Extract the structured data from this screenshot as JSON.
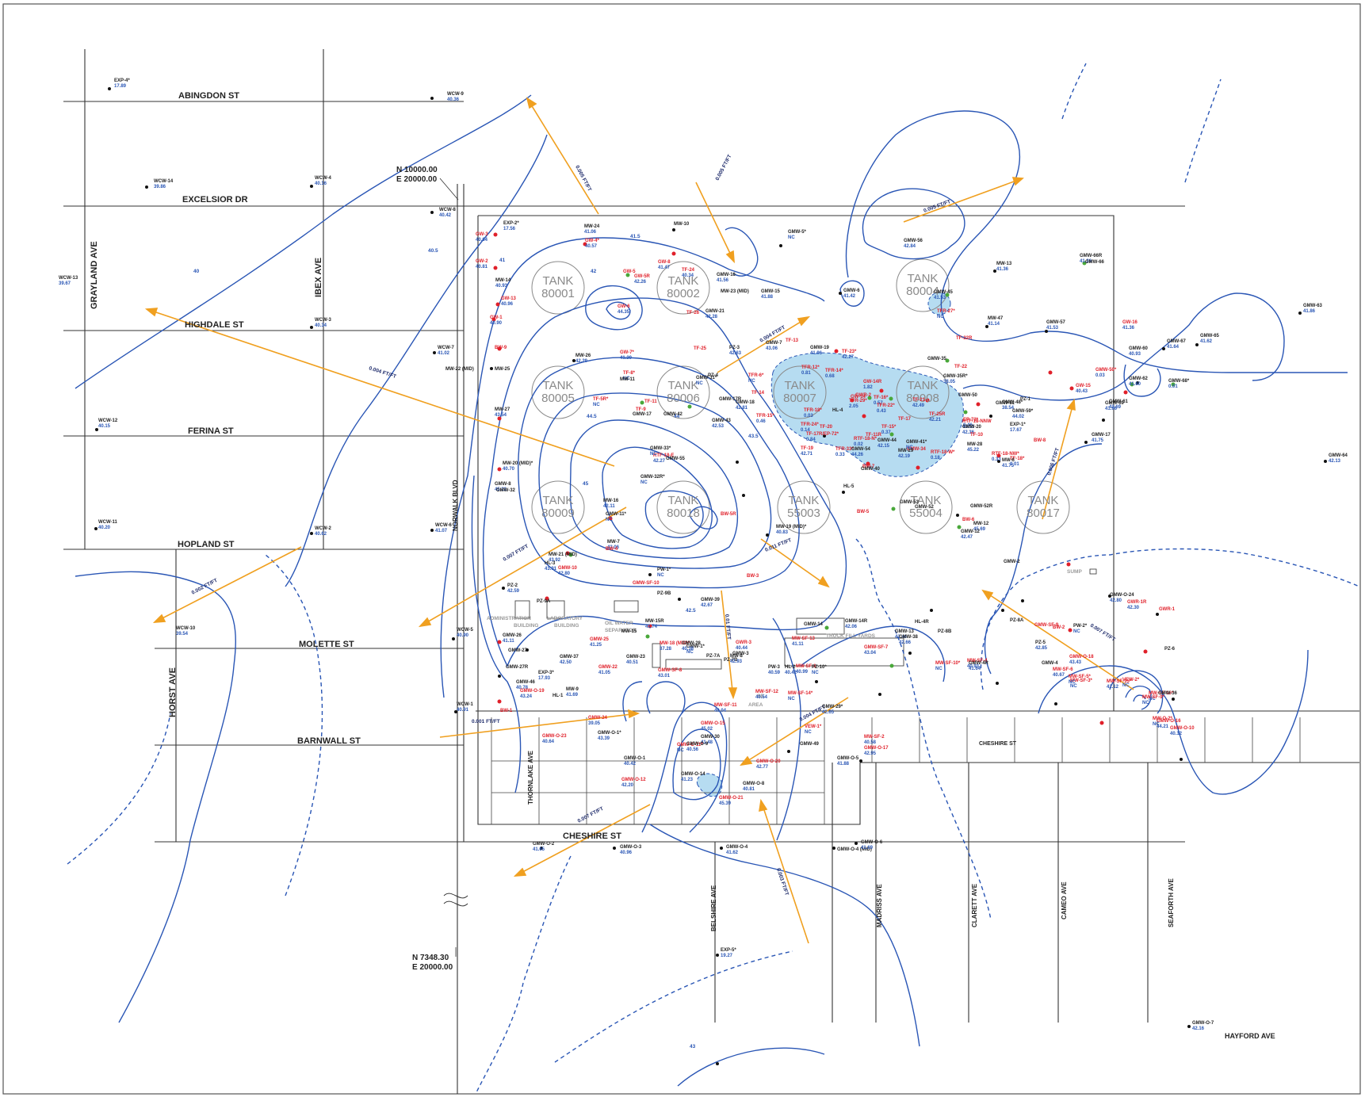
{
  "streets": {
    "abingdon": "ABINGDON ST",
    "excelsior": "EXCELSIOR DR",
    "highdale": "HIGHDALE ST",
    "ferina": "FERINA ST",
    "hopland": "HOPLAND ST",
    "molette": "MOLETTE ST",
    "barnwall": "BARNWALL ST",
    "cheshire_w": "CHESHIRE ST",
    "cheshire_e": "CHESHIRE ST",
    "hayford": "HAYFORD AVE",
    "grayland": "GRAYLAND AVE",
    "ibex": "IBEX AVE",
    "norwalk": "NORWALK BLVD",
    "horst": "HORST AVE",
    "thornlake": "THORNLAKE AVE",
    "belshire": "BELSHIRE AVE",
    "madriss": "MADRISS AVE",
    "clarett": "CLARETT AVE",
    "cameo": "CAMEO AVE",
    "seaforth": "SEAFORTH AVE"
  },
  "coordinates": {
    "top_n": "N 10000.00",
    "top_e": "E 20000.00",
    "bottom_n": "N 7348.30",
    "bottom_e": "E 20000.00"
  },
  "tanks": [
    {
      "label": "TANK",
      "num": "80001"
    },
    {
      "label": "TANK",
      "num": "80002"
    },
    {
      "label": "TANK",
      "num": "80004"
    },
    {
      "label": "TANK",
      "num": "80005"
    },
    {
      "label": "TANK",
      "num": "80006"
    },
    {
      "label": "TANK",
      "num": "80007"
    },
    {
      "label": "TANK",
      "num": "80008"
    },
    {
      "label": "TANK",
      "num": "80009"
    },
    {
      "label": "TANK",
      "num": "80018"
    },
    {
      "label": "TANK",
      "num": "55003"
    },
    {
      "label": "TANK",
      "num": "55004"
    },
    {
      "label": "TANK",
      "num": "80017"
    }
  ],
  "buildings": {
    "admin": "ADMINISTRATION",
    "admin2": "BUILDING",
    "lab": "LABORATORY",
    "lab2": "BUILDING",
    "oil": "OIL WATER",
    "oil2": "SEPARATOR",
    "truck": "TRUCK FILL YARDS",
    "se": "SE",
    "se2": "AREA",
    "sump": "SUMP"
  },
  "gradients": {
    "g1": "0.004 FT/FT",
    "g2": "0.005 FT/FT",
    "g3": "0.005 FT/FT",
    "g4": "0.004 FT/FT",
    "g5": "0.005 FT/FT",
    "g6": "0.007 FT/FT",
    "g7": "0.011 FT/FT",
    "g8": "0.002 FT/FT",
    "g9": "0.01 FT/FT",
    "g10": "0.001 FT/FT",
    "g11": "0.004 FT/FT",
    "g12": "0.007 FT/FT",
    "g13": "0.003 FT/FT",
    "g14": "0.006 FT/FT",
    "g15": "0.007 FT/FT"
  },
  "contour_labels": [
    "40",
    "40.5",
    "41",
    "41.5",
    "42",
    "42.5",
    "43",
    "43.5",
    "44",
    "44.5",
    "45"
  ],
  "wells": [
    {
      "id": "EXP-4*",
      "v": "17.89"
    },
    {
      "id": "WCW-9",
      "v": "40.36"
    },
    {
      "id": "WCW-14",
      "v": "39.86"
    },
    {
      "id": "WCW-4",
      "v": "40.16"
    },
    {
      "id": "WCW-13",
      "v": "39.67"
    },
    {
      "id": "WCW-8",
      "v": "40.42"
    },
    {
      "id": "WCW-3",
      "v": "40.34"
    },
    {
      "id": "WCW-7",
      "v": "41.02"
    },
    {
      "id": "WCW-12",
      "v": "40.15"
    },
    {
      "id": "WCW-11",
      "v": "40.20"
    },
    {
      "id": "WCW-2",
      "v": "40.62"
    },
    {
      "id": "WCW-6",
      "v": "41.07"
    },
    {
      "id": "WCW-10",
      "v": "39.54"
    },
    {
      "id": "WCW-5",
      "v": "40.90"
    },
    {
      "id": "WCW-1",
      "v": "40.91"
    },
    {
      "id": "EXP-2*",
      "v": "17.56"
    },
    {
      "id": "GW-3",
      "v": "40.64"
    },
    {
      "id": "GW-2",
      "v": "40.81"
    },
    {
      "id": "MW-14",
      "v": "40.93"
    },
    {
      "id": "GW-13",
      "v": "40.96"
    },
    {
      "id": "GW-1",
      "v": "40.90"
    },
    {
      "id": "MW-24",
      "v": "41.06"
    },
    {
      "id": "GW-4*",
      "v": "40.57"
    },
    {
      "id": "MW-10",
      "v": ""
    },
    {
      "id": "GW-8",
      "v": "41.47"
    },
    {
      "id": "GMW-16",
      "v": "41.56"
    },
    {
      "id": "TF-24",
      "v": "40.34"
    },
    {
      "id": "MW-23 (MID)",
      "v": ""
    },
    {
      "id": "GMW-5*",
      "v": "NC"
    },
    {
      "id": "GW-5",
      "v": ""
    },
    {
      "id": "GW-5R",
      "v": "42.26"
    },
    {
      "id": "GW-6",
      "v": "44.35"
    },
    {
      "id": "GMW-15",
      "v": "41.88"
    },
    {
      "id": "GMW-21",
      "v": "42.28"
    },
    {
      "id": "TF-26",
      "v": ""
    },
    {
      "id": "GMW-6",
      "v": "41.42"
    },
    {
      "id": "GMW-56",
      "v": "42.84"
    },
    {
      "id": "GMW-45",
      "v": "41.53"
    },
    {
      "id": "TFR-27*",
      "v": "NC"
    },
    {
      "id": "MW-13",
      "v": "41.36"
    },
    {
      "id": "GMW-66R",
      "v": "41.36"
    },
    {
      "id": "GMW-66",
      "v": ""
    },
    {
      "id": "MW-47",
      "v": "41.14"
    },
    {
      "id": "GMW-57",
      "v": "41.53"
    },
    {
      "id": "GW-16",
      "v": "41.36"
    },
    {
      "id": "GMW-63",
      "v": "41.86"
    },
    {
      "id": "GMW-65",
      "v": "41.62"
    },
    {
      "id": "GMW-67",
      "v": "41.64"
    },
    {
      "id": "GMW-60",
      "v": "40.93"
    },
    {
      "id": "GMW-68*",
      "v": "0.01"
    },
    {
      "id": "GMW-62",
      "v": "41.60"
    },
    {
      "id": "GMW-61",
      "v": "42.69"
    },
    {
      "id": "GMW-69",
      "v": "41.96"
    },
    {
      "id": "GMW-50*",
      "v": "0.03"
    },
    {
      "id": "GW-15",
      "v": "40.43"
    },
    {
      "id": "GMW-17",
      "v": "41.75"
    },
    {
      "id": "GMW-64",
      "v": "42.13"
    },
    {
      "id": "BW-9",
      "v": ""
    },
    {
      "id": "MW-22 (MID)",
      "v": ""
    },
    {
      "id": "MW-25",
      "v": ""
    },
    {
      "id": "MW-26",
      "v": "42.29"
    },
    {
      "id": "GW-7*",
      "v": "41.20"
    },
    {
      "id": "TF-25",
      "v": ""
    },
    {
      "id": "PZ-3",
      "v": "42.63"
    },
    {
      "id": "TF-13",
      "v": ""
    },
    {
      "id": "GMW-7",
      "v": "43.06"
    },
    {
      "id": "GMW-19",
      "v": "41.96"
    },
    {
      "id": "TF-23*",
      "v": "42.27"
    },
    {
      "id": "TF-22R",
      "v": ""
    },
    {
      "id": "GMW-35",
      "v": ""
    },
    {
      "id": "TF-22",
      "v": ""
    },
    {
      "id": "GMW-35R*",
      "v": "38.05"
    },
    {
      "id": "TF-8*",
      "v": "NC"
    },
    {
      "id": "MW-11",
      "v": ""
    },
    {
      "id": "GMW-31*",
      "v": "NC"
    },
    {
      "id": "PZ-4",
      "v": ""
    },
    {
      "id": "TFR-6*",
      "v": "NC"
    },
    {
      "id": "TF-14",
      "v": ""
    },
    {
      "id": "GMW-18",
      "v": "42.81"
    },
    {
      "id": "GMW-17R",
      "v": ""
    },
    {
      "id": "TFR-12*",
      "v": "0.81"
    },
    {
      "id": "TFR-14*",
      "v": "0.68"
    },
    {
      "id": "GW-14R",
      "v": "1.82"
    },
    {
      "id": "GWR-2",
      "v": ""
    },
    {
      "id": "GW-14",
      "v": ""
    },
    {
      "id": "TF-16*",
      "v": "0.57"
    },
    {
      "id": "TFR-18*",
      "v": "0.03"
    },
    {
      "id": "HL-4",
      "v": ""
    },
    {
      "id": "TFR-29*",
      "v": "2.05"
    },
    {
      "id": "TFR-22*",
      "v": "0.43"
    },
    {
      "id": "TF-21",
      "v": "42.49"
    },
    {
      "id": "GMW-50",
      "v": ""
    },
    {
      "id": "GMW-51",
      "v": ""
    },
    {
      "id": "GMW-48*",
      "v": "38.54"
    },
    {
      "id": "PZ-1",
      "v": ""
    },
    {
      "id": "GMW-59*",
      "v": "44.02"
    },
    {
      "id": "EXP-1*",
      "v": "17.67"
    },
    {
      "id": "BW-8",
      "v": ""
    },
    {
      "id": "MW-27",
      "v": "43.54"
    },
    {
      "id": "TF-5R*",
      "v": "NC"
    },
    {
      "id": "TF-9",
      "v": ""
    },
    {
      "id": "GMW-17",
      "v": ""
    },
    {
      "id": "TF-11",
      "v": ""
    },
    {
      "id": "GMW-42",
      "v": ""
    },
    {
      "id": "GMW-43",
      "v": "42.53"
    },
    {
      "id": "TFR-15*",
      "v": "0.46"
    },
    {
      "id": "TFR-24*",
      "v": "0.14"
    },
    {
      "id": "TF-17",
      "v": ""
    },
    {
      "id": "TF-25R",
      "v": "42.21"
    },
    {
      "id": "TF-20",
      "v": ""
    },
    {
      "id": "TF-15*",
      "v": "0.37"
    },
    {
      "id": "RTF-18-NNW",
      "v": "43.51"
    },
    {
      "id": "TF-17R/EP-72*",
      "v": "0.84"
    },
    {
      "id": "EP-73*",
      "v": "0.46"
    },
    {
      "id": "RTF-18-N*",
      "v": "0.02"
    },
    {
      "id": "TFR-33*",
      "v": "0.33"
    },
    {
      "id": "TF-11R",
      "v": ""
    },
    {
      "id": "GMW-44",
      "v": "42.15"
    },
    {
      "id": "GMW-20",
      "v": "42.36"
    },
    {
      "id": "TF-19",
      "v": "42.71"
    },
    {
      "id": "GMW-54",
      "v": "44.26"
    },
    {
      "id": "GMW-34",
      "v": ""
    },
    {
      "id": "TF-10",
      "v": ""
    },
    {
      "id": "MW-28",
      "v": "45.22"
    },
    {
      "id": "RTF-18-NW*",
      "v": "0.33"
    },
    {
      "id": "RTF-18-E",
      "v": "42.27"
    },
    {
      "id": "GMW-33*",
      "v": "NC"
    },
    {
      "id": "GMW-55",
      "v": ""
    },
    {
      "id": "GMW-41*",
      "v": "NC"
    },
    {
      "id": "MW-29",
      "v": "42.19"
    },
    {
      "id": "RTF-18-W*",
      "v": "0.18"
    },
    {
      "id": "TF-18*",
      "v": "0.01"
    },
    {
      "id": "BW-7",
      "v": ""
    },
    {
      "id": "GMW-40",
      "v": ""
    },
    {
      "id": "MW-6",
      "v": "41.75"
    },
    {
      "id": "MW-20 (MID)*",
      "v": "40.70"
    },
    {
      "id": "GMW-32R*",
      "v": "NC"
    },
    {
      "id": "GMW-8",
      "v": "45.22"
    },
    {
      "id": "GMW-32",
      "v": ""
    },
    {
      "id": "HL-5",
      "v": ""
    },
    {
      "id": "MW-16",
      "v": "42.11"
    },
    {
      "id": "GMW-53",
      "v": ""
    },
    {
      "id": "GMW-52",
      "v": ""
    },
    {
      "id": "GMW-52R",
      "v": ""
    },
    {
      "id": "BW-6",
      "v": ""
    },
    {
      "id": "MW-12",
      "v": "45.69"
    },
    {
      "id": "GMW-12",
      "v": "42.47"
    },
    {
      "id": "GMW-11*",
      "v": "NC"
    },
    {
      "id": "BW-5R",
      "v": ""
    },
    {
      "id": "BW-5",
      "v": ""
    },
    {
      "id": "MW-19 (MID)*",
      "v": "40.83"
    },
    {
      "id": "MW-7",
      "v": "43.06"
    },
    {
      "id": "BW-4",
      "v": ""
    },
    {
      "id": "MW-21 (MID)",
      "v": "43.92"
    },
    {
      "id": "HL-3",
      "v": "43.91"
    },
    {
      "id": "GMW-10",
      "v": "42.80"
    },
    {
      "id": "GMW-SF-10",
      "v": ""
    },
    {
      "id": "PW-1*",
      "v": "NC"
    },
    {
      "id": "BW-3",
      "v": ""
    },
    {
      "id": "GMW-2",
      "v": ""
    },
    {
      "id": "PZ-2",
      "v": "42.59"
    },
    {
      "id": "PZ-9A",
      "v": ""
    },
    {
      "id": "PZ-9B",
      "v": ""
    },
    {
      "id": "GMW-39",
      "v": "42.67"
    },
    {
      "id": "GMW-O-24",
      "v": "42.80"
    },
    {
      "id": "GWR-1R",
      "v": "42.30"
    },
    {
      "id": "GWR-1",
      "v": ""
    },
    {
      "id": "HL-4R",
      "v": ""
    },
    {
      "id": "MW-15R",
      "v": "41.74"
    },
    {
      "id": "MW-15",
      "v": ""
    },
    {
      "id": "GMW-14",
      "v": ""
    },
    {
      "id": "GMW-14R",
      "v": "42.06"
    },
    {
      "id": "GMW-13",
      "v": "42.46"
    },
    {
      "id": "GMW-38",
      "v": "42.66"
    },
    {
      "id": "PZ-8B",
      "v": ""
    },
    {
      "id": "PZ-8A",
      "v": ""
    },
    {
      "id": "GMW-SF-9",
      "v": ""
    },
    {
      "id": "BW-2",
      "v": ""
    },
    {
      "id": "PW-2*",
      "v": "NC"
    },
    {
      "id": "GMW-26",
      "v": "41.11"
    },
    {
      "id": "GMW-27",
      "v": ""
    },
    {
      "id": "GMW-25",
      "v": "41.25"
    },
    {
      "id": "MW-18 (MID)*",
      "v": "37.28"
    },
    {
      "id": "GMW-1*",
      "v": "NC"
    },
    {
      "id": "GMW-3",
      "v": ""
    },
    {
      "id": "GMW-SF-7",
      "v": "43.04"
    },
    {
      "id": "PZ-5",
      "v": "42.85"
    },
    {
      "id": "GMW-O-18",
      "v": "43.43"
    },
    {
      "id": "PZ-6",
      "v": ""
    },
    {
      "id": "GMW-27R",
      "v": ""
    },
    {
      "id": "GMW-22",
      "v": "41.05"
    },
    {
      "id": "GMW-23",
      "v": "40.51"
    },
    {
      "id": "GMW-28",
      "v": "40.38"
    },
    {
      "id": "GWR-3",
      "v": "40.44"
    },
    {
      "id": "MW-SF-13",
      "v": "41.11"
    },
    {
      "id": "MW-SF-1",
      "v": "40.99"
    },
    {
      "id": "PZ-10*",
      "v": "NC"
    },
    {
      "id": "MW-SF-10*",
      "v": "NC"
    },
    {
      "id": "MW-SF-4",
      "v": "40.93"
    },
    {
      "id": "GMW-4R",
      "v": "41.64"
    },
    {
      "id": "GMW-4",
      "v": ""
    },
    {
      "id": "EXP-3*",
      "v": "17.93"
    },
    {
      "id": "GMW-37",
      "v": "42.50"
    },
    {
      "id": "GMW-SF-8",
      "v": "43.01"
    },
    {
      "id": "PZ-7A",
      "v": ""
    },
    {
      "id": "PZ-7B",
      "v": ""
    },
    {
      "id": "MW-8",
      "v": "42.93"
    },
    {
      "id": "PW-3",
      "v": "40.59"
    },
    {
      "id": "HL-2",
      "v": "40.42"
    },
    {
      "id": "MW-SF-6",
      "v": "40.67"
    },
    {
      "id": "MW-SF-3*",
      "v": "NC"
    },
    {
      "id": "MW-SF-5*",
      "v": "NC"
    },
    {
      "id": "VEW-2*",
      "v": "NC"
    },
    {
      "id": "GMW-46",
      "v": "40.78"
    },
    {
      "id": "MW-9",
      "v": "41.69"
    },
    {
      "id": "HL-1",
      "v": ""
    },
    {
      "id": "GMW-O-19",
      "v": "43.24"
    },
    {
      "id": "BW-1",
      "v": ""
    },
    {
      "id": "GMW-29*",
      "v": "42.65"
    },
    {
      "id": "MW-SF-11",
      "v": "40.04"
    },
    {
      "id": "MW-SF-12",
      "v": "40.54"
    },
    {
      "id": "MW-SF-14*",
      "v": "NC"
    },
    {
      "id": "MW-SF-15*",
      "v": "42.12"
    },
    {
      "id": "MW-SF-16*",
      "v": "NC"
    },
    {
      "id": "MW-SF-9*",
      "v": "NC"
    },
    {
      "id": "GMW-36",
      "v": ""
    },
    {
      "id": "GMW-O-16",
      "v": "44.21"
    },
    {
      "id": "GMW-O-15",
      "v": "45.02"
    },
    {
      "id": "GMW-30",
      "v": "41.48"
    },
    {
      "id": "GMW-24",
      "v": "39.05"
    },
    {
      "id": "GMW-O-23",
      "v": "40.64"
    },
    {
      "id": "MW-SF-2",
      "v": "40.58"
    },
    {
      "id": "VEW-1*",
      "v": "NC"
    },
    {
      "id": "MW-O-2*",
      "v": "NC"
    },
    {
      "id": "GMW-O-10",
      "v": "40.12"
    },
    {
      "id": "GMW-O-11*",
      "v": "NC"
    },
    {
      "id": "GMW-O-1*",
      "v": "43.39"
    },
    {
      "id": "GMW-O-1",
      "v": "40.42"
    },
    {
      "id": "GMW-O-14",
      "v": "41.23"
    },
    {
      "id": "GMW-O-20",
      "v": "42.77"
    },
    {
      "id": "GMW-49",
      "v": ""
    },
    {
      "id": "GMW-O-5",
      "v": "41.88"
    },
    {
      "id": "GMW-O-17",
      "v": "42.95"
    },
    {
      "id": "GMW-O-9",
      "v": "40.56"
    },
    {
      "id": "GMW-O-12",
      "v": "42.20"
    },
    {
      "id": "GMW-O-21",
      "v": "45.39"
    },
    {
      "id": "GMW-O-8",
      "v": "40.81"
    },
    {
      "id": "GMW-O-2",
      "v": "41.65"
    },
    {
      "id": "GMW-O-3",
      "v": "40.96"
    },
    {
      "id": "GMW-O-4",
      "v": "41.62"
    },
    {
      "id": "GMW-O-4 (MID)",
      "v": ""
    },
    {
      "id": "GMW-O-6",
      "v": "41.69"
    },
    {
      "id": "EXP-5*",
      "v": "19.27"
    },
    {
      "id": "GMW-O-7",
      "v": "42.16"
    }
  ]
}
